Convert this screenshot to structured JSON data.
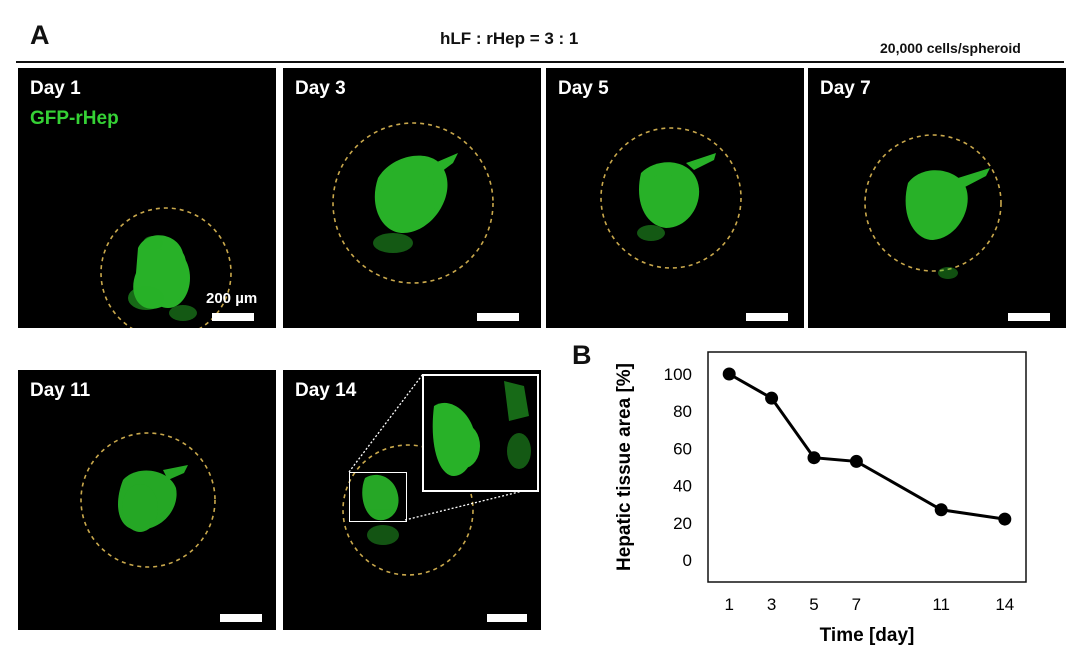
{
  "figure": {
    "panel_a_letter": "A",
    "panel_b_letter": "B",
    "title": "hLF : rHep = 3 : 1",
    "subtitle": "20,000 cells/spheroid",
    "stain_label": "GFP-rHep",
    "scale_bar_label": "200 µm",
    "tiles": [
      {
        "day": "Day 1"
      },
      {
        "day": "Day 3"
      },
      {
        "day": "Day 5"
      },
      {
        "day": "Day 7"
      },
      {
        "day": "Day 11"
      },
      {
        "day": "Day  14"
      }
    ],
    "colors": {
      "fluorescence": "#2fd12f",
      "outline": "#c9a84c",
      "background": "#000000"
    }
  },
  "chart_data": {
    "type": "line",
    "xlabel": "Time [day]",
    "ylabel": "Hepatic tissue area [%]",
    "x": [
      1,
      3,
      5,
      7,
      11,
      14
    ],
    "xticks": [
      "1",
      "3",
      "5",
      "7",
      "11",
      "14"
    ],
    "series": [
      {
        "values": [
          100,
          87,
          55,
          53,
          27,
          22
        ]
      }
    ],
    "ylim": [
      0,
      100
    ],
    "yticks": [
      0,
      20,
      40,
      60,
      80,
      100
    ],
    "grid": false
  }
}
